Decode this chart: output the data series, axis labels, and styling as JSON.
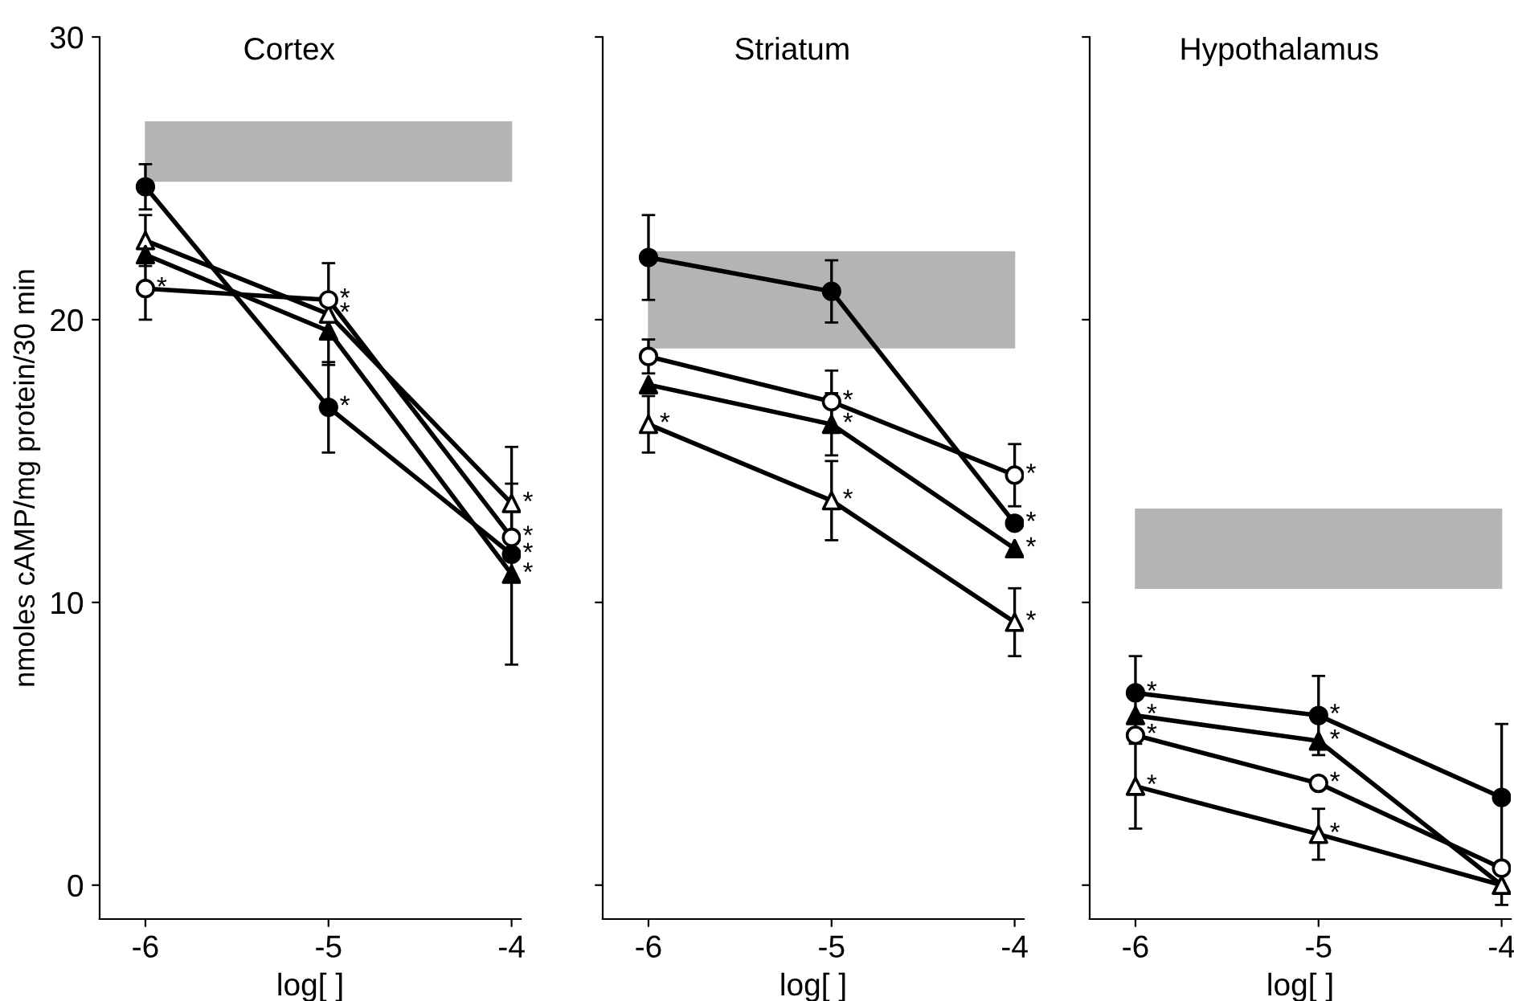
{
  "chart_data": [
    {
      "type": "line",
      "title": "Cortex",
      "xlabel": "log[ ]",
      "ylabel": "nmoles cAMP/mg protein/30 min",
      "x": [
        -6,
        -5,
        -4
      ],
      "xlim": [
        -6.25,
        -3.95
      ],
      "xticks": [
        {
          "value": -6,
          "label": "-6"
        },
        {
          "value": -5,
          "label": "-5"
        },
        {
          "value": -4,
          "label": "-4"
        }
      ],
      "ylim": [
        -1.2,
        30
      ],
      "yticks": [
        0,
        10,
        20,
        30
      ],
      "grid": false,
      "legend": false,
      "line_style": "solid",
      "series": [
        {
          "color": "#000000",
          "marker": "circle",
          "values": [
            24.7,
            16.9,
            11.7
          ],
          "errors": [
            0.8,
            1.6,
            null
          ]
        },
        {
          "color": "#000000",
          "marker": "triangle",
          "colors": [
            "#ffffff",
            "#ffffff",
            "#ffffff"
          ],
          "values": [
            22.8,
            20.2,
            13.5
          ],
          "errors": [
            0.9,
            null,
            2.0
          ]
        },
        {
          "color": "#000000",
          "marker": "triangle",
          "values": [
            22.3,
            19.6,
            11.0
          ],
          "errors": [
            null,
            1.2,
            3.2
          ]
        },
        {
          "color": "#000000",
          "marker": "circle",
          "colors": [
            "#ffffff",
            "#ffffff",
            "#ffffff"
          ],
          "values": [
            21.1,
            20.7,
            12.3
          ],
          "errors": [
            1.1,
            1.3,
            null
          ]
        }
      ],
      "bands": [
        {
          "axis": "y",
          "from": 24.9,
          "to": 27.0,
          "color": "#b4b4b4"
        }
      ],
      "annotations": [
        {
          "text": "*",
          "x": -6,
          "y": 21.1
        },
        {
          "text": "*",
          "x": -5,
          "y": 20.7
        },
        {
          "text": "*",
          "x": -5,
          "y": 20.2
        },
        {
          "text": "*",
          "x": -5,
          "y": 16.9
        },
        {
          "text": "*",
          "x": -4,
          "y": 13.5
        },
        {
          "text": "*",
          "x": -4,
          "y": 12.3
        },
        {
          "text": "*",
          "x": -4,
          "y": 11.7
        },
        {
          "text": "*",
          "x": -4,
          "y": 11.0
        }
      ]
    },
    {
      "type": "line",
      "title": "Striatum",
      "xlabel": "log[ ]",
      "x": [
        -6,
        -5,
        -4
      ],
      "xlim": [
        -6.25,
        -3.95
      ],
      "xticks": [
        {
          "value": -6,
          "label": "-6"
        },
        {
          "value": -5,
          "label": "-5"
        },
        {
          "value": -4,
          "label": "-4"
        }
      ],
      "ylim": [
        -1.2,
        30
      ],
      "yticks": [
        0,
        10,
        20,
        30
      ],
      "tick_labels": "x",
      "grid": false,
      "legend": false,
      "line_style": "solid",
      "series": [
        {
          "color": "#000000",
          "marker": "circle",
          "values": [
            22.2,
            21.0,
            12.8
          ],
          "errors": [
            1.5,
            1.1,
            null
          ]
        },
        {
          "color": "#000000",
          "marker": "circle",
          "colors": [
            "#ffffff",
            "#ffffff",
            "#ffffff"
          ],
          "values": [
            18.7,
            17.1,
            14.5
          ],
          "errors": [
            0.6,
            1.1,
            1.1
          ]
        },
        {
          "color": "#000000",
          "marker": "triangle",
          "values": [
            17.7,
            16.3,
            11.9
          ],
          "errors": [
            null,
            1.1,
            null
          ]
        },
        {
          "color": "#000000",
          "marker": "triangle",
          "colors": [
            "#ffffff",
            "#ffffff",
            "#ffffff"
          ],
          "values": [
            16.3,
            13.6,
            9.3
          ],
          "errors": [
            1.0,
            1.4,
            1.2
          ]
        }
      ],
      "bands": [
        {
          "axis": "y",
          "from": 19.0,
          "to": 22.4,
          "color": "#b4b4b4"
        }
      ],
      "annotations": [
        {
          "text": "*",
          "x": -6,
          "y": 16.3
        },
        {
          "text": "*",
          "x": -5,
          "y": 17.1
        },
        {
          "text": "*",
          "x": -5,
          "y": 16.3
        },
        {
          "text": "*",
          "x": -5,
          "y": 13.6
        },
        {
          "text": "*",
          "x": -4,
          "y": 14.5
        },
        {
          "text": "*",
          "x": -4,
          "y": 12.8
        },
        {
          "text": "*",
          "x": -4,
          "y": 11.9
        },
        {
          "text": "*",
          "x": -4,
          "y": 9.3
        }
      ]
    },
    {
      "type": "line",
      "title": "Hypothalamus",
      "xlabel": "log[ ]",
      "x": [
        -6,
        -5,
        -4
      ],
      "xlim": [
        -6.25,
        -3.95
      ],
      "xticks": [
        {
          "value": -6,
          "label": "-6"
        },
        {
          "value": -5,
          "label": "-5"
        },
        {
          "value": -4,
          "label": "-4"
        }
      ],
      "ylim": [
        -1.2,
        30
      ],
      "yticks": [
        0,
        10,
        20,
        30
      ],
      "tick_labels": "x",
      "grid": false,
      "legend": false,
      "line_style": "solid",
      "series": [
        {
          "color": "#000000",
          "marker": "circle",
          "values": [
            6.8,
            6.0,
            3.1
          ],
          "errors": [
            1.3,
            1.4,
            2.6
          ]
        },
        {
          "color": "#000000",
          "marker": "triangle",
          "values": [
            6.0,
            5.1,
            0.0
          ],
          "errors": [
            null,
            null,
            0.7
          ]
        },
        {
          "color": "#000000",
          "marker": "circle",
          "colors": [
            "#ffffff",
            "#ffffff",
            "#ffffff"
          ],
          "values": [
            5.3,
            3.6,
            0.6
          ]
        },
        {
          "color": "#000000",
          "marker": "triangle",
          "colors": [
            "#ffffff",
            "#ffffff",
            "#ffffff"
          ],
          "values": [
            3.5,
            1.8,
            0.0
          ],
          "errors": [
            1.5,
            0.9,
            null
          ]
        }
      ],
      "bands": [
        {
          "axis": "y",
          "from": 10.5,
          "to": 13.3,
          "color": "#b4b4b4"
        }
      ],
      "annotations": [
        {
          "text": "*",
          "x": -6,
          "y": 6.8
        },
        {
          "text": "*",
          "x": -6,
          "y": 6.0
        },
        {
          "text": "*",
          "x": -6,
          "y": 5.3
        },
        {
          "text": "*",
          "x": -6,
          "y": 3.5
        },
        {
          "text": "*",
          "x": -5,
          "y": 6.0
        },
        {
          "text": "*",
          "x": -5,
          "y": 5.1
        },
        {
          "text": "*",
          "x": -5,
          "y": 3.6
        },
        {
          "text": "*",
          "x": -5,
          "y": 1.8
        }
      ]
    }
  ]
}
